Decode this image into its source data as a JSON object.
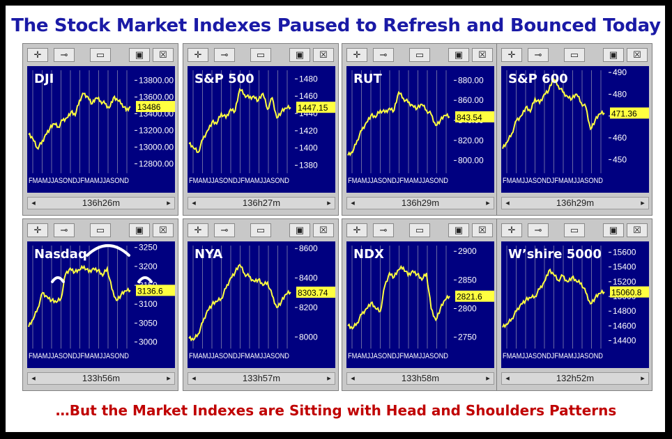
{
  "title": "The Stock Market Indexes Paused to Refresh and Bounced Today",
  "subtitle": "…But the Market Indexes are Sitting with Head and Shoulders Patterns",
  "toolbar": {
    "move": "✛",
    "pin": "⊸",
    "min": "▭",
    "max": "▣",
    "close": "☒"
  },
  "scroll": {
    "left": "◂",
    "right": "▸"
  },
  "colors": {
    "plot_bg": "#000080",
    "line": "#ffff40",
    "grid": "#c0c0c0",
    "label_bg": "#ffff40"
  },
  "chart_data": [
    {
      "type": "line",
      "name": "DJI",
      "timer": "136h26m",
      "ylim": [
        12720,
        13920
      ],
      "yticks": [
        "13800.00",
        "13600.00",
        "13400.00",
        "13200.00",
        "13000.00",
        "12800.00"
      ],
      "ytick_values": [
        13800,
        13600,
        13400,
        13200,
        13000,
        12800
      ],
      "last": "13486",
      "last_value": 13486,
      "x_ticks": "FMAMJJASONDJFMAMJJASOND",
      "values": [
        13150,
        13100,
        12990,
        13040,
        13150,
        13220,
        13280,
        13240,
        13320,
        13350,
        13420,
        13380,
        13560,
        13640,
        13600,
        13520,
        13590,
        13550,
        13520,
        13470,
        13590,
        13560,
        13520,
        13440,
        13486
      ]
    },
    {
      "type": "line",
      "name": "S&P 500",
      "timer": "136h27m",
      "ylim": [
        1374,
        1490
      ],
      "yticks": [
        "1480",
        "1460",
        "1440",
        "1420",
        "1400",
        "1380"
      ],
      "ytick_values": [
        1480,
        1460,
        1440,
        1420,
        1400,
        1380
      ],
      "last": "1447.15",
      "last_value": 1447.15,
      "x_ticks": "FMAMJJASONDJFMAMJJASOND",
      "values": [
        1405,
        1400,
        1395,
        1410,
        1420,
        1430,
        1428,
        1440,
        1435,
        1445,
        1443,
        1468,
        1462,
        1458,
        1460,
        1455,
        1463,
        1445,
        1458,
        1435,
        1442,
        1446,
        1447
      ]
    },
    {
      "type": "line",
      "name": "RUT",
      "timer": "136h29m",
      "ylim": [
        790,
        890
      ],
      "yticks": [
        "880.00",
        "860.00",
        "840.00",
        "820.00",
        "800.00"
      ],
      "ytick_values": [
        880,
        860,
        840,
        820,
        800
      ],
      "last": "843.54",
      "last_value": 843.54,
      "x_ticks": "FMAMJJASONDJFMAMJJASOND",
      "values": [
        805,
        808,
        820,
        830,
        838,
        845,
        843,
        850,
        848,
        852,
        850,
        868,
        862,
        858,
        855,
        852,
        856,
        850,
        846,
        835,
        840,
        845,
        843.54
      ]
    },
    {
      "type": "line",
      "name": "S&P 600",
      "timer": "136h29m",
      "ylim": [
        445,
        491
      ],
      "yticks": [
        "490",
        "480",
        "470",
        "460",
        "450"
      ],
      "ytick_values": [
        490,
        480,
        470,
        460,
        450
      ],
      "last": "471.36",
      "last_value": 471.36,
      "x_ticks": "FMAMJJASONDJFMAMJJASOND",
      "values": [
        455,
        458,
        462,
        468,
        470,
        474,
        472,
        478,
        476,
        480,
        482,
        487,
        484,
        481,
        479,
        478,
        480,
        476,
        474,
        464,
        468,
        471,
        471.36
      ]
    },
    {
      "type": "line",
      "name": "Nasdaq",
      "timer": "133h56m",
      "ylim": [
        2990,
        3255
      ],
      "yticks": [
        "3250",
        "3200",
        "3150",
        "3100",
        "3050",
        "3000"
      ],
      "ytick_values": [
        3250,
        3200,
        3150,
        3100,
        3050,
        3000
      ],
      "last": "3136.6",
      "last_value": 3136.6,
      "x_ticks": "FMAMJJASONDJFMAMJJASOND",
      "values": [
        3040,
        3060,
        3090,
        3130,
        3120,
        3110,
        3105,
        3115,
        3180,
        3195,
        3185,
        3190,
        3200,
        3185,
        3195,
        3190,
        3175,
        3195,
        3140,
        3110,
        3125,
        3135,
        3136.6
      ]
    },
    {
      "type": "line",
      "name": "NYA",
      "timer": "133h57m",
      "ylim": [
        7940,
        8620
      ],
      "yticks": [
        "8600",
        "8400",
        "8200",
        "8000"
      ],
      "ytick_values": [
        8600,
        8400,
        8200,
        8000
      ],
      "last": "8303.74",
      "last_value": 8303.74,
      "x_ticks": "FMAMJJASONDJFMAMJJASOND",
      "values": [
        7990,
        7980,
        8020,
        8100,
        8180,
        8220,
        8240,
        8260,
        8330,
        8400,
        8440,
        8490,
        8430,
        8410,
        8380,
        8390,
        8350,
        8370,
        8280,
        8200,
        8240,
        8290,
        8303.74
      ]
    },
    {
      "type": "line",
      "name": "NDX",
      "timer": "133h58m",
      "ylim": [
        2735,
        2910
      ],
      "yticks": [
        "2900",
        "2850",
        "2800",
        "2750"
      ],
      "ytick_values": [
        2900,
        2850,
        2800,
        2750
      ],
      "last": "2821.6",
      "last_value": 2821.6,
      "x_ticks": "FMAMJJASONDJFMAMJJASOND",
      "values": [
        2770,
        2765,
        2775,
        2790,
        2800,
        2810,
        2800,
        2795,
        2840,
        2862,
        2855,
        2868,
        2872,
        2858,
        2866,
        2860,
        2850,
        2862,
        2800,
        2780,
        2800,
        2815,
        2821.6
      ]
    },
    {
      "type": "line",
      "name": "W’shire 5000",
      "timer": "132h52m",
      "ylim": [
        14330,
        15690
      ],
      "yticks": [
        "15600",
        "15400",
        "15200",
        "15000",
        "14800",
        "14600",
        "14400"
      ],
      "ytick_values": [
        15600,
        15400,
        15200,
        15000,
        14800,
        14600,
        14400
      ],
      "last": "15060.8",
      "last_value": 15060.8,
      "x_ticks": "FMAMJJASONDJFMAMJJASOND",
      "values": [
        14580,
        14620,
        14700,
        14800,
        14900,
        14950,
        14980,
        15000,
        15100,
        15200,
        15350,
        15300,
        15220,
        15280,
        15200,
        15260,
        15200,
        15180,
        15050,
        14900,
        14980,
        15040,
        15060.8
      ]
    }
  ]
}
